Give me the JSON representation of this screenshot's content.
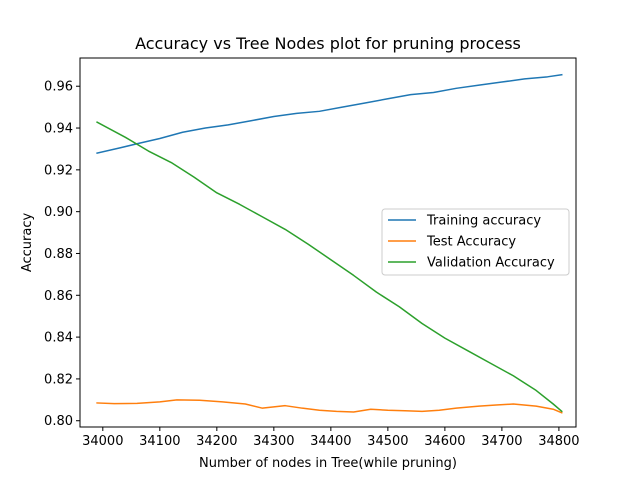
{
  "chart_data": {
    "type": "line",
    "title": "Accuracy vs Tree Nodes plot for pruning process",
    "xlabel": "Number of nodes in Tree(while pruning)",
    "ylabel": "Accuracy",
    "xlim": [
      33960,
      34830
    ],
    "ylim": [
      0.797,
      0.9735
    ],
    "xticks": [
      34000,
      34100,
      34200,
      34300,
      34400,
      34500,
      34600,
      34700,
      34800
    ],
    "yticks": [
      "0.80",
      "0.82",
      "0.84",
      "0.86",
      "0.88",
      "0.90",
      "0.92",
      "0.94",
      "0.96"
    ],
    "grid": false,
    "legend_position": "center-right",
    "series": [
      {
        "name": "Training accuracy",
        "color": "#1f77b4",
        "x": [
          33990,
          34030,
          34060,
          34100,
          34140,
          34180,
          34220,
          34260,
          34300,
          34340,
          34380,
          34420,
          34460,
          34500,
          34540,
          34580,
          34620,
          34660,
          34700,
          34740,
          34780,
          34805
        ],
        "y": [
          0.928,
          0.9305,
          0.9325,
          0.935,
          0.938,
          0.94,
          0.9415,
          0.9435,
          0.9455,
          0.947,
          0.948,
          0.95,
          0.952,
          0.954,
          0.956,
          0.957,
          0.959,
          0.9605,
          0.962,
          0.9635,
          0.9645,
          0.9655
        ]
      },
      {
        "name": "Test Accuracy",
        "color": "#ff7f0e",
        "x": [
          33990,
          34020,
          34060,
          34100,
          34130,
          34170,
          34210,
          34250,
          34280,
          34320,
          34350,
          34380,
          34410,
          34440,
          34470,
          34500,
          34530,
          34560,
          34590,
          34620,
          34660,
          34690,
          34720,
          34760,
          34790,
          34805
        ],
        "y": [
          0.8085,
          0.8082,
          0.8083,
          0.809,
          0.81,
          0.8098,
          0.809,
          0.808,
          0.806,
          0.8072,
          0.806,
          0.805,
          0.8045,
          0.8042,
          0.8055,
          0.805,
          0.8048,
          0.8045,
          0.805,
          0.806,
          0.807,
          0.8075,
          0.808,
          0.807,
          0.8055,
          0.8038
        ]
      },
      {
        "name": "Validation Accuracy",
        "color": "#2ca02c",
        "x": [
          33990,
          34040,
          34080,
          34120,
          34160,
          34200,
          34240,
          34280,
          34320,
          34360,
          34400,
          34440,
          34480,
          34520,
          34560,
          34600,
          34640,
          34680,
          34720,
          34760,
          34790,
          34805
        ],
        "y": [
          0.9428,
          0.9355,
          0.929,
          0.9235,
          0.9165,
          0.909,
          0.9035,
          0.8975,
          0.8915,
          0.8845,
          0.877,
          0.8695,
          0.8615,
          0.8545,
          0.8465,
          0.8395,
          0.8335,
          0.8275,
          0.8215,
          0.8145,
          0.808,
          0.8045
        ]
      }
    ]
  }
}
